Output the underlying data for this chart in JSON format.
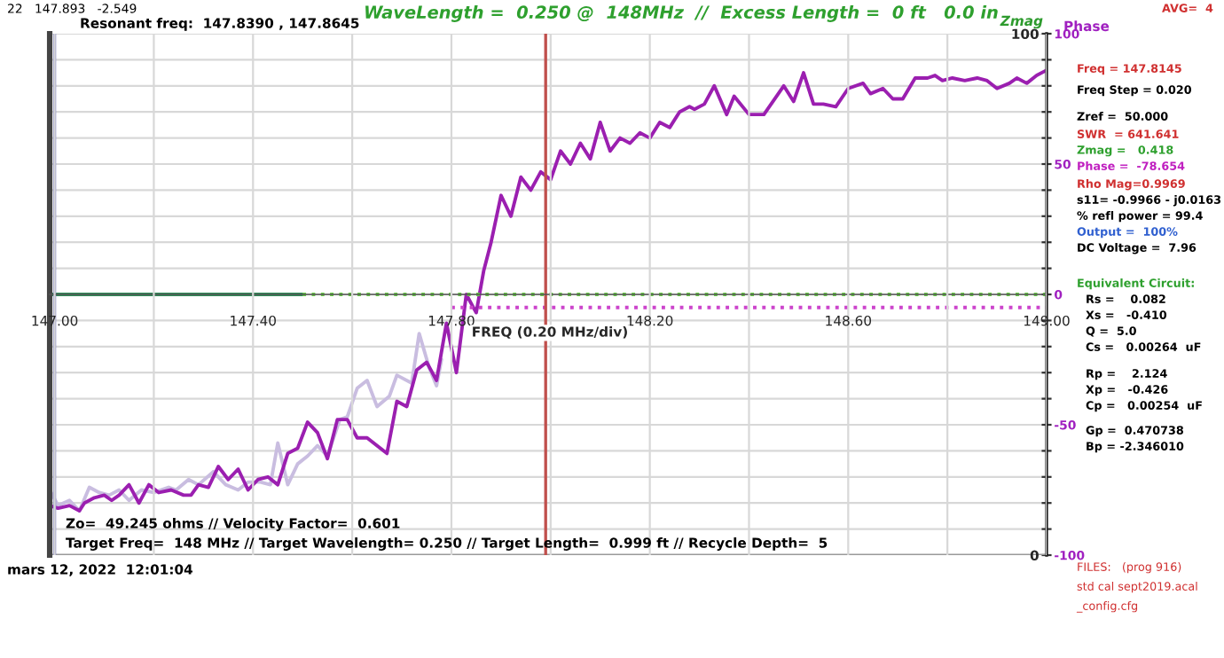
{
  "chart_data": {
    "type": "line",
    "title": "WaveLength =  0.250 @  148MHz  //  Excess Length =  0 ft   0.0 in",
    "xlabel": "FREQ (0.20 MHz/div)",
    "ylabel": "Phase",
    "y2label": "Zmag",
    "xlim": [
      146.99,
      149.0
    ],
    "xticks": [
      {
        "value": 147.0,
        "label": "147.00"
      },
      {
        "value": 147.2,
        "label": null
      },
      {
        "value": 147.4,
        "label": "147.40"
      },
      {
        "value": 147.6,
        "label": null
      },
      {
        "value": 147.8,
        "label": "147.80"
      },
      {
        "value": 148.0,
        "label": null
      },
      {
        "value": 148.2,
        "label": "148.20"
      },
      {
        "value": 148.4,
        "label": null
      },
      {
        "value": 148.6,
        "label": "148.60"
      },
      {
        "value": 148.8,
        "label": null
      },
      {
        "value": 149.0,
        "label": "149.00"
      }
    ],
    "ylim": [
      -100,
      100
    ],
    "yticks": [
      -100,
      {
        "value": -90,
        "label": null
      },
      {
        "value": -80,
        "label": null
      },
      {
        "value": -70,
        "label": null
      },
      {
        "value": -60,
        "label": null
      },
      -50,
      {
        "value": -40,
        "label": null
      },
      {
        "value": -30,
        "label": null
      },
      {
        "value": -20,
        "label": null
      },
      {
        "value": -10,
        "label": null
      },
      0,
      {
        "value": 10,
        "label": null
      },
      {
        "value": 20,
        "label": null
      },
      {
        "value": 30,
        "label": null
      },
      {
        "value": 40,
        "label": null
      },
      50,
      {
        "value": 60,
        "label": null
      },
      {
        "value": 70,
        "label": null
      },
      {
        "value": 80,
        "label": null
      },
      {
        "value": 90,
        "label": null
      },
      100
    ],
    "y2lim": [
      0,
      100
    ],
    "y2ticks": [
      0,
      100
    ],
    "grid": true,
    "legend": false,
    "series": [
      {
        "color": "#c9bde0",
        "x": [
          146.99,
          147.007,
          147.03,
          147.05,
          147.07,
          147.09,
          147.11,
          147.13,
          147.15,
          147.175,
          147.2,
          147.23,
          147.245,
          147.27,
          147.29,
          147.32,
          147.345,
          147.37,
          147.39,
          147.415,
          147.435,
          147.45,
          147.47,
          147.49,
          147.51,
          147.53,
          147.55,
          147.575,
          147.59,
          147.61,
          147.63,
          147.65,
          147.675,
          147.69,
          147.72,
          147.735,
          147.755,
          147.77,
          147.78
        ],
        "values": [
          -75,
          -81,
          -79,
          -83,
          -74,
          -76,
          -77,
          -75,
          -79,
          -75,
          -76,
          -74,
          -75,
          -71,
          -73,
          -68,
          -73,
          -75,
          -72,
          -72,
          -73,
          -57,
          -73,
          -65,
          -62,
          -58,
          -62,
          -48,
          -47,
          -36,
          -33,
          -43,
          -39,
          -31,
          -34,
          -15,
          -28,
          -35,
          -25
        ]
      },
      {
        "color": "#9b1fb0",
        "x": [
          146.99,
          147.007,
          147.03,
          147.05,
          147.06,
          147.08,
          147.1,
          147.115,
          147.13,
          147.15,
          147.17,
          147.19,
          147.21,
          147.235,
          147.26,
          147.275,
          147.29,
          147.31,
          147.33,
          147.35,
          147.37,
          147.39,
          147.41,
          147.43,
          147.45,
          147.47,
          147.49,
          147.51,
          147.53,
          147.55,
          147.57,
          147.59,
          147.61,
          147.63,
          147.67,
          147.69,
          147.71,
          147.73,
          147.75,
          147.77,
          147.79,
          147.81,
          147.83,
          147.85,
          147.865,
          147.88,
          147.9,
          147.92,
          147.94,
          147.96,
          147.98,
          148.0,
          148.02,
          148.04,
          148.06,
          148.08,
          148.1,
          148.12,
          148.14,
          148.16,
          148.18,
          148.2,
          148.22,
          148.24,
          148.26,
          148.28,
          148.29,
          148.31,
          148.33,
          148.355,
          148.37,
          148.4,
          148.43,
          148.47,
          148.49,
          148.51,
          148.53,
          148.55,
          148.575,
          148.6,
          148.63,
          148.645,
          148.67,
          148.69,
          148.71,
          148.735,
          148.76,
          148.775,
          148.79,
          148.81,
          148.835,
          148.86,
          148.88,
          148.9,
          148.925,
          148.94,
          148.96,
          148.98,
          149.0
        ],
        "values": [
          -81,
          -82,
          -81,
          -83,
          -80,
          -78,
          -77,
          -79,
          -77,
          -73,
          -80,
          -73,
          -76,
          -75,
          -77,
          -77,
          -73,
          -74,
          -66,
          -71,
          -67,
          -75,
          -71,
          -70,
          -73,
          -61,
          -59,
          -49,
          -53,
          -63,
          -48,
          -48,
          -55,
          -55,
          -61,
          -41,
          -43,
          -29,
          -26,
          -33,
          -11,
          -30,
          0,
          -7,
          9,
          20,
          38,
          30,
          45,
          40,
          47,
          44,
          55,
          50,
          58,
          52,
          66,
          55,
          60,
          58,
          62,
          60,
          66,
          64,
          70,
          72,
          71,
          73,
          80,
          69,
          76,
          69,
          69,
          80,
          74,
          85,
          73,
          73,
          72,
          79,
          81,
          77,
          79,
          75,
          75,
          83,
          83,
          84,
          82,
          83,
          82,
          83,
          82,
          79,
          81,
          83,
          81,
          84,
          86
        ]
      },
      {
        "color": "#2e8b57",
        "x": [
          146.99,
          147.5
        ],
        "values": [
          0,
          0
        ]
      },
      {
        "color": "#66cc44",
        "line_style": "dotted",
        "x": [
          147.5,
          149.0
        ],
        "values": [
          0,
          0
        ]
      },
      {
        "color": "#cc44cc",
        "line_style": "dotted",
        "x": [
          147.8,
          149.0
        ],
        "values": [
          -5,
          -5
        ]
      }
    ],
    "ref_lines": [
      {
        "axis": "x",
        "value": 147.99,
        "color": "#c0504d"
      },
      {
        "axis": "x",
        "value": 147.0,
        "color": "#8080c0"
      }
    ],
    "annotations": [
      "22   147.893   -2.549",
      "Resonant freq:  147.8390 , 147.8645",
      "AVG=  4",
      "Freq = 147.8145",
      "Freq Step = 0.020",
      "Zref =  50.000",
      "SWR  = 641.641",
      "Zmag =   0.418",
      "Phase =  -78.654",
      "Rho Mag=0.9969",
      "s11= -0.9966 - j0.0163",
      "% refl power = 99.4",
      "Output =  100%",
      "DC Voltage =  7.96",
      "Equivalent Circuit:",
      "Rs =    0.082",
      "Xs =   -0.410",
      "Q =  5.0",
      "Cs =   0.00264  uF",
      "Rp =    2.124",
      "Xp =   -0.426",
      "Cp =   0.00254  uF",
      "Gp =  0.470738",
      "Bp = -2.346010",
      "FILES:   (prog 916)",
      "std cal sept2019.acal",
      "_config.cfg",
      "Zo=  49.245 ohms // Velocity Factor=  0.601",
      "Target Freq=  148 MHz // Target Wavelength= 0.250 // Target Length=  0.999 ft // Recycle Depth=  5",
      "mars 12, 2022  12:01:04"
    ]
  }
}
